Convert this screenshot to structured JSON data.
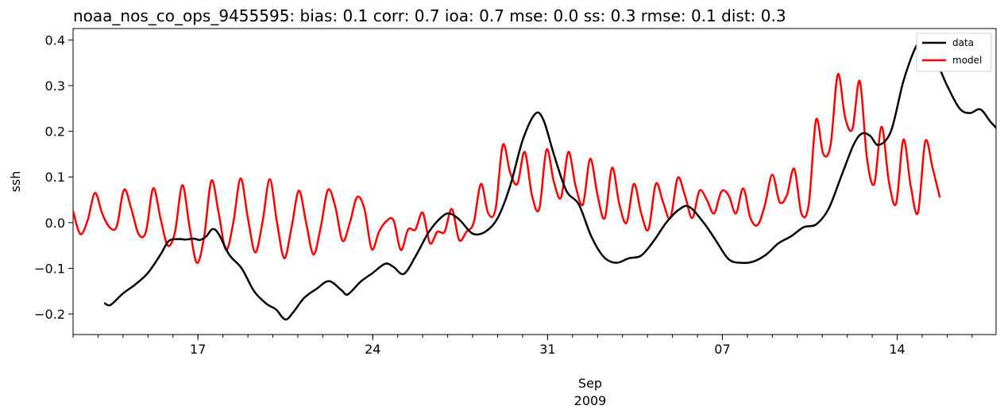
{
  "chart_data": {
    "type": "line",
    "title": "noaa_nos_co_ops_9455595: bias: 0.1  corr: 0.7  ioa: 0.7  mse: 0.0  ss: 0.3  rmse: 0.1  dist: 0.3",
    "xlabel": "",
    "ylabel": "ssh",
    "xlim": [
      "2009-08-12",
      "2009-09-17T23:00"
    ],
    "ylim": [
      -0.245,
      0.425
    ],
    "x_axis_labels": {
      "month": "Sep",
      "year": "2009"
    },
    "x_ticks": [
      {
        "date": "2009-08-17",
        "label": "17"
      },
      {
        "date": "2009-08-24",
        "label": "24"
      },
      {
        "date": "2009-08-31",
        "label": "31"
      },
      {
        "date": "2009-09-07",
        "label": "07"
      },
      {
        "date": "2009-09-14",
        "label": "14"
      }
    ],
    "y_ticks": [
      {
        "value": -0.2,
        "label": "−0.2"
      },
      {
        "value": -0.1,
        "label": "−0.1"
      },
      {
        "value": 0.0,
        "label": "0.0"
      },
      {
        "value": 0.1,
        "label": "0.1"
      },
      {
        "value": 0.2,
        "label": "0.2"
      },
      {
        "value": 0.3,
        "label": "0.3"
      },
      {
        "value": 0.4,
        "label": "0.4"
      }
    ],
    "grid": false,
    "legend": {
      "position": "top-right",
      "entries": [
        "data",
        "model"
      ]
    },
    "series": [
      {
        "name": "data",
        "color": "#000000",
        "points": [
          [
            "2009-08-13T06:00",
            -0.176
          ],
          [
            "2009-08-13T12:00",
            -0.18
          ],
          [
            "2009-08-14T00:00",
            -0.155
          ],
          [
            "2009-08-14T12:00",
            -0.135
          ],
          [
            "2009-08-15T00:00",
            -0.11
          ],
          [
            "2009-08-15T12:00",
            -0.07
          ],
          [
            "2009-08-15T20:00",
            -0.04
          ],
          [
            "2009-08-16T06:00",
            -0.036
          ],
          [
            "2009-08-16T12:00",
            -0.037
          ],
          [
            "2009-08-16T20:00",
            -0.035
          ],
          [
            "2009-08-17T02:00",
            -0.038
          ],
          [
            "2009-08-17T08:00",
            -0.03
          ],
          [
            "2009-08-17T14:00",
            -0.014
          ],
          [
            "2009-08-17T20:00",
            -0.025
          ],
          [
            "2009-08-18T06:00",
            -0.07
          ],
          [
            "2009-08-18T18:00",
            -0.1
          ],
          [
            "2009-08-19T06:00",
            -0.15
          ],
          [
            "2009-08-19T18:00",
            -0.178
          ],
          [
            "2009-08-20T03:00",
            -0.19
          ],
          [
            "2009-08-20T12:00",
            -0.212
          ],
          [
            "2009-08-20T20:00",
            -0.195
          ],
          [
            "2009-08-21T06:00",
            -0.165
          ],
          [
            "2009-08-21T18:00",
            -0.145
          ],
          [
            "2009-08-22T06:00",
            -0.128
          ],
          [
            "2009-08-22T18:00",
            -0.148
          ],
          [
            "2009-08-23T00:00",
            -0.157
          ],
          [
            "2009-08-23T12:00",
            -0.13
          ],
          [
            "2009-08-24T00:00",
            -0.11
          ],
          [
            "2009-08-24T12:00",
            -0.09
          ],
          [
            "2009-08-24T20:00",
            -0.097
          ],
          [
            "2009-08-25T06:00",
            -0.112
          ],
          [
            "2009-08-25T18:00",
            -0.07
          ],
          [
            "2009-08-26T06:00",
            -0.02
          ],
          [
            "2009-08-26T18:00",
            0.012
          ],
          [
            "2009-08-27T02:00",
            0.02
          ],
          [
            "2009-08-27T12:00",
            0.005
          ],
          [
            "2009-08-28T00:00",
            -0.024
          ],
          [
            "2009-08-28T12:00",
            -0.02
          ],
          [
            "2009-08-29T00:00",
            0.01
          ],
          [
            "2009-08-29T12:00",
            0.08
          ],
          [
            "2009-08-30T00:00",
            0.18
          ],
          [
            "2009-08-30T12:00",
            0.238
          ],
          [
            "2009-08-30T20:00",
            0.225
          ],
          [
            "2009-08-31T06:00",
            0.15
          ],
          [
            "2009-08-31T18:00",
            0.07
          ],
          [
            "2009-09-01T06:00",
            0.04
          ],
          [
            "2009-09-01T18:00",
            -0.03
          ],
          [
            "2009-09-02T06:00",
            -0.075
          ],
          [
            "2009-09-02T18:00",
            -0.088
          ],
          [
            "2009-09-03T06:00",
            -0.078
          ],
          [
            "2009-09-03T18:00",
            -0.072
          ],
          [
            "2009-09-04T06:00",
            -0.04
          ],
          [
            "2009-09-04T18:00",
            0.0
          ],
          [
            "2009-09-05T06:00",
            0.028
          ],
          [
            "2009-09-05T16:00",
            0.035
          ],
          [
            "2009-09-06T06:00",
            0.0
          ],
          [
            "2009-09-06T18:00",
            -0.04
          ],
          [
            "2009-09-07T06:00",
            -0.08
          ],
          [
            "2009-09-07T18:00",
            -0.088
          ],
          [
            "2009-09-08T06:00",
            -0.085
          ],
          [
            "2009-09-08T18:00",
            -0.07
          ],
          [
            "2009-09-09T06:00",
            -0.045
          ],
          [
            "2009-09-09T18:00",
            -0.03
          ],
          [
            "2009-09-10T06:00",
            -0.01
          ],
          [
            "2009-09-10T18:00",
            -0.004
          ],
          [
            "2009-09-11T06:00",
            0.03
          ],
          [
            "2009-09-11T18:00",
            0.1
          ],
          [
            "2009-09-12T06:00",
            0.17
          ],
          [
            "2009-09-12T14:00",
            0.195
          ],
          [
            "2009-09-12T22:00",
            0.19
          ],
          [
            "2009-09-13T06:00",
            0.17
          ],
          [
            "2009-09-13T18:00",
            0.2
          ],
          [
            "2009-09-14T06:00",
            0.31
          ],
          [
            "2009-09-14T18:00",
            0.385
          ],
          [
            "2009-09-15T00:00",
            0.39
          ],
          [
            "2009-09-15T12:00",
            0.36
          ],
          [
            "2009-09-16T00:00",
            0.3
          ],
          [
            "2009-09-16T12:00",
            0.25
          ],
          [
            "2009-09-16T22:00",
            0.24
          ],
          [
            "2009-09-17T08:00",
            0.248
          ],
          [
            "2009-09-17T18:00",
            0.22
          ],
          [
            "2009-09-18T06:00",
            0.19
          ],
          [
            "2009-09-18T18:00",
            0.15
          ]
        ]
      },
      {
        "name": "model",
        "color": "#ff0000",
        "points": [
          [
            "2009-08-12T00:00",
            0.025
          ],
          [
            "2009-08-12T07:00",
            -0.025
          ],
          [
            "2009-08-12T14:00",
            0.005
          ],
          [
            "2009-08-12T21:00",
            0.065
          ],
          [
            "2009-08-13T04:00",
            0.02
          ],
          [
            "2009-08-13T11:00",
            -0.01
          ],
          [
            "2009-08-13T18:00",
            -0.008
          ],
          [
            "2009-08-14T01:00",
            0.072
          ],
          [
            "2009-08-14T08:00",
            0.03
          ],
          [
            "2009-08-14T15:00",
            -0.025
          ],
          [
            "2009-08-14T22:00",
            -0.02
          ],
          [
            "2009-08-15T05:00",
            0.075
          ],
          [
            "2009-08-15T12:00",
            0.01
          ],
          [
            "2009-08-15T19:00",
            -0.05
          ],
          [
            "2009-08-16T02:00",
            -0.02
          ],
          [
            "2009-08-16T09:00",
            0.082
          ],
          [
            "2009-08-16T16:00",
            -0.01
          ],
          [
            "2009-08-16T23:00",
            -0.088
          ],
          [
            "2009-08-17T06:00",
            -0.03
          ],
          [
            "2009-08-17T13:00",
            0.092
          ],
          [
            "2009-08-17T20:00",
            0.02
          ],
          [
            "2009-08-18T03:00",
            -0.06
          ],
          [
            "2009-08-18T10:00",
            0.0
          ],
          [
            "2009-08-18T17:00",
            0.097
          ],
          [
            "2009-08-19T00:00",
            0.01
          ],
          [
            "2009-08-19T07:00",
            -0.065
          ],
          [
            "2009-08-19T14:00",
            0.0
          ],
          [
            "2009-08-19T21:00",
            0.095
          ],
          [
            "2009-08-20T04:00",
            0.0
          ],
          [
            "2009-08-20T11:00",
            -0.078
          ],
          [
            "2009-08-20T18:00",
            -0.01
          ],
          [
            "2009-08-21T01:00",
            0.07
          ],
          [
            "2009-08-21T08:00",
            0.0
          ],
          [
            "2009-08-21T15:00",
            -0.07
          ],
          [
            "2009-08-21T22:00",
            -0.01
          ],
          [
            "2009-08-22T05:00",
            0.072
          ],
          [
            "2009-08-22T12:00",
            0.035
          ],
          [
            "2009-08-22T19:00",
            -0.04
          ],
          [
            "2009-08-23T02:00",
            0.0
          ],
          [
            "2009-08-23T09:00",
            0.056
          ],
          [
            "2009-08-23T16:00",
            0.03
          ],
          [
            "2009-08-23T23:00",
            -0.058
          ],
          [
            "2009-08-24T06:00",
            -0.02
          ],
          [
            "2009-08-24T13:00",
            0.003
          ],
          [
            "2009-08-24T20:00",
            0.005
          ],
          [
            "2009-08-25T03:00",
            -0.06
          ],
          [
            "2009-08-25T10:00",
            -0.015
          ],
          [
            "2009-08-25T17:00",
            -0.015
          ],
          [
            "2009-08-26T00:00",
            0.022
          ],
          [
            "2009-08-26T07:00",
            -0.045
          ],
          [
            "2009-08-26T14:00",
            -0.02
          ],
          [
            "2009-08-26T21:00",
            -0.02
          ],
          [
            "2009-08-27T04:00",
            0.03
          ],
          [
            "2009-08-27T11:00",
            -0.038
          ],
          [
            "2009-08-27T18:00",
            -0.02
          ],
          [
            "2009-08-28T01:00",
            0.0
          ],
          [
            "2009-08-28T08:00",
            0.085
          ],
          [
            "2009-08-28T15:00",
            0.02
          ],
          [
            "2009-08-28T22:00",
            0.03
          ],
          [
            "2009-08-29T05:00",
            0.17
          ],
          [
            "2009-08-29T12:00",
            0.11
          ],
          [
            "2009-08-29T19:00",
            0.085
          ],
          [
            "2009-08-30T02:00",
            0.155
          ],
          [
            "2009-08-30T09:00",
            0.06
          ],
          [
            "2009-08-30T16:00",
            0.03
          ],
          [
            "2009-08-30T23:00",
            0.16
          ],
          [
            "2009-08-31T06:00",
            0.09
          ],
          [
            "2009-08-31T13:00",
            0.055
          ],
          [
            "2009-08-31T20:00",
            0.155
          ],
          [
            "2009-09-01T03:00",
            0.08
          ],
          [
            "2009-09-01T10:00",
            0.04
          ],
          [
            "2009-09-01T17:00",
            0.14
          ],
          [
            "2009-09-02T00:00",
            0.06
          ],
          [
            "2009-09-02T07:00",
            0.01
          ],
          [
            "2009-09-02T14:00",
            0.12
          ],
          [
            "2009-09-02T21:00",
            0.04
          ],
          [
            "2009-09-03T04:00",
            0.0
          ],
          [
            "2009-09-03T11:00",
            0.085
          ],
          [
            "2009-09-03T18:00",
            0.02
          ],
          [
            "2009-09-04T01:00",
            -0.015
          ],
          [
            "2009-09-04T08:00",
            0.085
          ],
          [
            "2009-09-04T15:00",
            0.045
          ],
          [
            "2009-09-04T22:00",
            0.01
          ],
          [
            "2009-09-05T05:00",
            0.098
          ],
          [
            "2009-09-05T12:00",
            0.06
          ],
          [
            "2009-09-05T19:00",
            0.01
          ],
          [
            "2009-09-06T02:00",
            0.07
          ],
          [
            "2009-09-06T09:00",
            0.05
          ],
          [
            "2009-09-06T16:00",
            0.02
          ],
          [
            "2009-09-06T23:00",
            0.068
          ],
          [
            "2009-09-07T06:00",
            0.06
          ],
          [
            "2009-09-07T13:00",
            0.02
          ],
          [
            "2009-09-07T20:00",
            0.075
          ],
          [
            "2009-09-08T03:00",
            0.01
          ],
          [
            "2009-09-08T10:00",
            -0.005
          ],
          [
            "2009-09-08T17:00",
            0.04
          ],
          [
            "2009-09-09T00:00",
            0.105
          ],
          [
            "2009-09-09T07:00",
            0.045
          ],
          [
            "2009-09-09T14:00",
            0.06
          ],
          [
            "2009-09-09T21:00",
            0.118
          ],
          [
            "2009-09-10T04:00",
            0.02
          ],
          [
            "2009-09-10T11:00",
            0.04
          ],
          [
            "2009-09-10T18:00",
            0.225
          ],
          [
            "2009-09-11T01:00",
            0.15
          ],
          [
            "2009-09-11T08:00",
            0.17
          ],
          [
            "2009-09-11T15:00",
            0.325
          ],
          [
            "2009-09-11T22:00",
            0.23
          ],
          [
            "2009-09-12T05:00",
            0.205
          ],
          [
            "2009-09-12T12:00",
            0.31
          ],
          [
            "2009-09-12T19:00",
            0.14
          ],
          [
            "2009-09-13T02:00",
            0.085
          ],
          [
            "2009-09-13T09:00",
            0.21
          ],
          [
            "2009-09-13T16:00",
            0.09
          ],
          [
            "2009-09-13T23:00",
            0.042
          ],
          [
            "2009-09-14T06:00",
            0.182
          ],
          [
            "2009-09-14T13:00",
            0.08
          ],
          [
            "2009-09-14T20:00",
            0.022
          ],
          [
            "2009-09-15T03:00",
            0.178
          ],
          [
            "2009-09-15T10:00",
            0.12
          ],
          [
            "2009-09-15T17:00",
            0.055
          ]
        ]
      }
    ]
  }
}
